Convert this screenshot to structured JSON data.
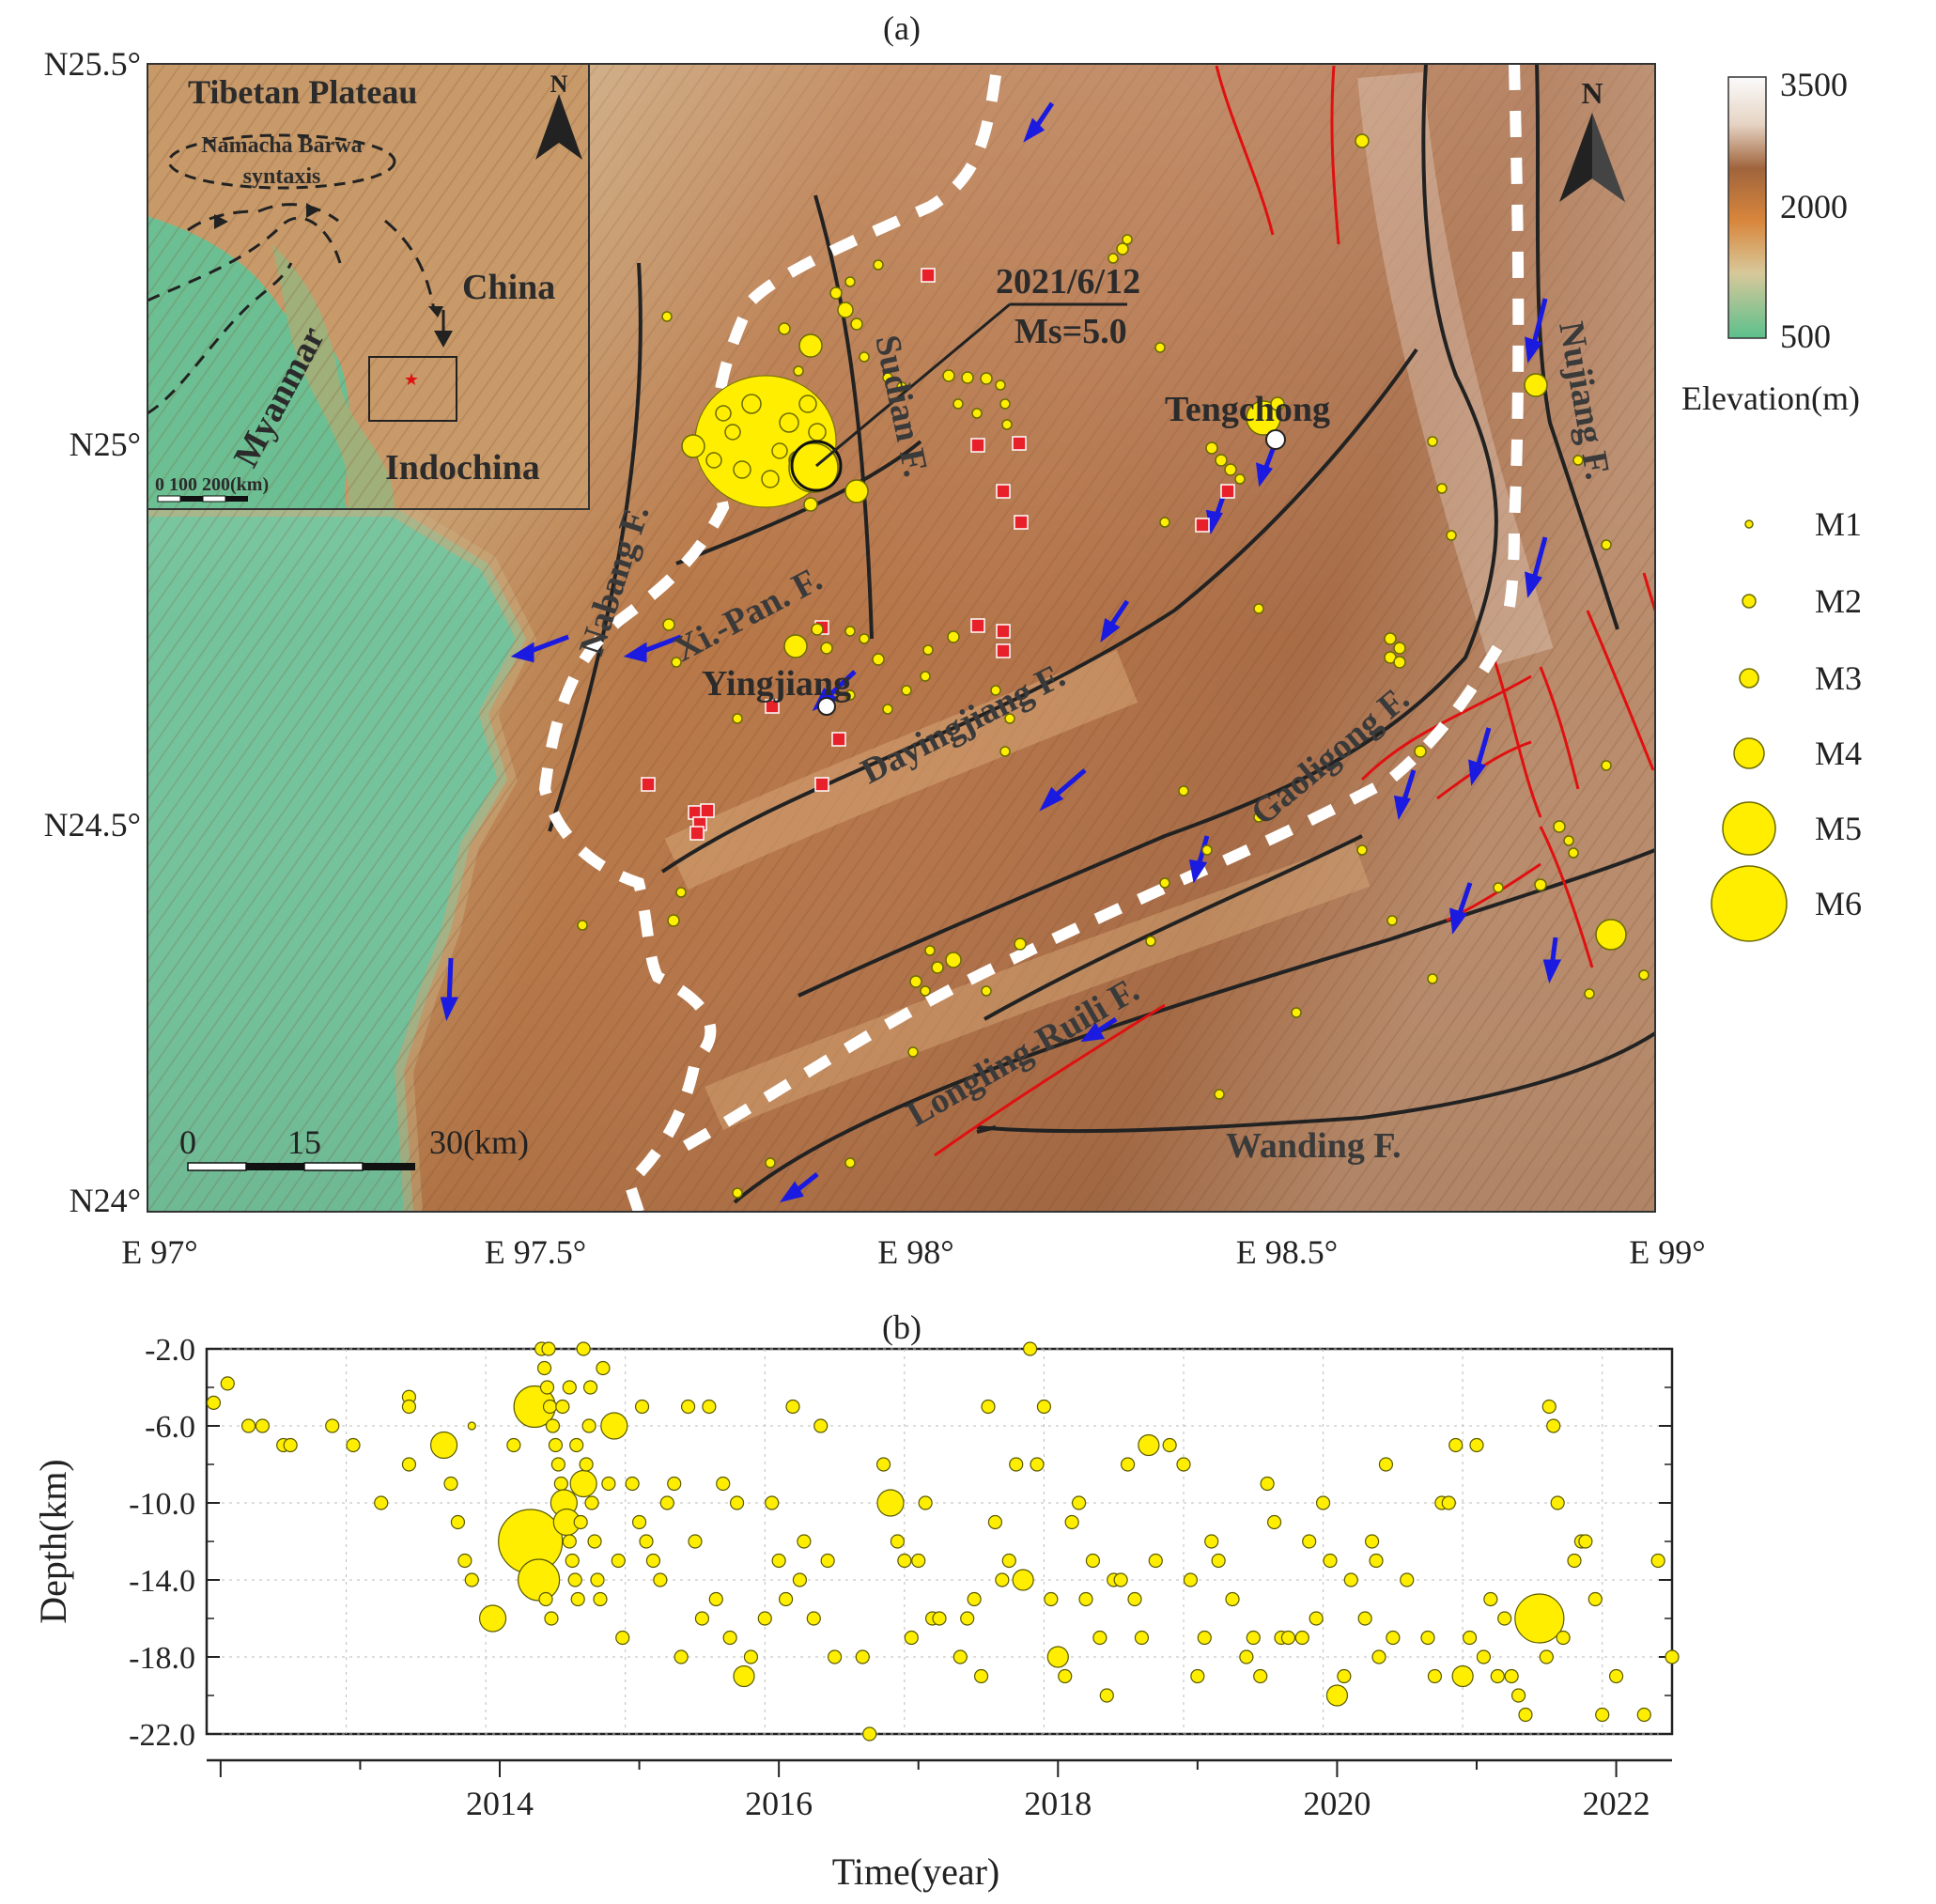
{
  "panel_a": {
    "label": "(a)",
    "lat_labels": [
      "N25.5°",
      "N25°",
      "N24.5°",
      "N24°"
    ],
    "lon_labels": [
      "E 97°",
      "E 97.5°",
      "E 98°",
      "E 98.5°",
      "E 99°"
    ],
    "event_line1": "2021/6/12",
    "event_line2": "Ms=5.0",
    "north_label": "N",
    "scale_labels": [
      "0",
      "15",
      "30(km)"
    ],
    "faults": [
      {
        "name": "Nabang F.",
        "color": "#222222"
      },
      {
        "name": "Xi.-Pan. F.",
        "color": "#222222"
      },
      {
        "name": "Sudian F.",
        "color": "#222222"
      },
      {
        "name": "Dayingjiang F.",
        "color": "#222222"
      },
      {
        "name": "Gaoligong F.",
        "color": "#222222"
      },
      {
        "name": "Longling-Ruili F.",
        "color": "#222222"
      },
      {
        "name": "Wanding F.",
        "color": "#222222"
      },
      {
        "name": "Nujiang F.",
        "color": "#222222"
      }
    ],
    "cities": [
      "Yingjiang",
      "Tengchong"
    ],
    "inset": {
      "title": "Tibetan Plateau",
      "syntaxis_line1": "Namacha Barwa",
      "syntaxis_line2": "syntaxis",
      "regions": [
        "China",
        "Myanmar",
        "Indochina"
      ],
      "scale_label": "0  100  200(km)",
      "north_label": "N"
    },
    "colors": {
      "epicenter": "#ffee00",
      "station": "#e8202a",
      "motion_arrow": "#1a1ae0",
      "boundary": "#ffffff",
      "red_fault": "#e01010"
    }
  },
  "legend": {
    "colorbar_ticks": [
      "3500",
      "2000",
      "500"
    ],
    "colorbar_title": "Elevation(m)",
    "magnitudes": [
      "M1",
      "M2",
      "M3",
      "M4",
      "M5",
      "M6"
    ]
  },
  "chart_data": {
    "type": "scatter",
    "title": "(b)",
    "xlabel": "Time(year)",
    "ylabel": "Depth(km)",
    "xlim": [
      2012.0,
      2022.5
    ],
    "ylim": [
      -22.0,
      -2.0
    ],
    "yticks": [
      "-2.0",
      "-6.0",
      "-10.0",
      "-14.0",
      "-18.0",
      "-22.0"
    ],
    "xticks": [
      "2014",
      "2016",
      "2018",
      "2020",
      "2022"
    ],
    "grid": true,
    "point_color": "#ffee00",
    "points": [
      [
        2012.05,
        -4.8,
        2
      ],
      [
        2012.15,
        -3.8,
        2
      ],
      [
        2012.3,
        -6,
        2
      ],
      [
        2012.4,
        -6,
        2
      ],
      [
        2012.55,
        -7,
        2
      ],
      [
        2012.6,
        -7,
        2
      ],
      [
        2012.9,
        -6,
        2
      ],
      [
        2013.05,
        -7,
        2
      ],
      [
        2013.25,
        -10,
        2
      ],
      [
        2013.45,
        -4.5,
        2
      ],
      [
        2013.45,
        -5,
        2
      ],
      [
        2013.45,
        -8,
        2
      ],
      [
        2013.7,
        -7,
        3
      ],
      [
        2013.75,
        -9,
        2
      ],
      [
        2013.8,
        -11,
        2
      ],
      [
        2013.85,
        -13,
        2
      ],
      [
        2013.9,
        -14,
        2
      ],
      [
        2013.9,
        -6,
        1
      ],
      [
        2014.05,
        -16,
        3
      ],
      [
        2014.2,
        -7,
        2
      ],
      [
        2014.25,
        -13,
        2
      ],
      [
        2014.32,
        -12,
        6
      ],
      [
        2014.35,
        -5,
        4
      ],
      [
        2014.38,
        -14,
        4
      ],
      [
        2014.4,
        -2,
        2
      ],
      [
        2014.42,
        -3,
        2
      ],
      [
        2014.44,
        -4,
        2
      ],
      [
        2014.46,
        -5,
        2
      ],
      [
        2014.48,
        -6,
        2
      ],
      [
        2014.5,
        -7,
        2
      ],
      [
        2014.52,
        -8,
        2
      ],
      [
        2014.54,
        -9,
        2
      ],
      [
        2014.56,
        -10,
        3
      ],
      [
        2014.58,
        -11,
        3
      ],
      [
        2014.6,
        -12,
        2
      ],
      [
        2014.62,
        -13,
        2
      ],
      [
        2014.64,
        -14,
        2
      ],
      [
        2014.66,
        -15,
        2
      ],
      [
        2014.68,
        -11,
        2
      ],
      [
        2014.7,
        -9,
        3
      ],
      [
        2014.72,
        -8,
        2
      ],
      [
        2014.74,
        -6,
        2
      ],
      [
        2014.76,
        -10,
        2
      ],
      [
        2014.78,
        -12,
        2
      ],
      [
        2014.8,
        -14,
        2
      ],
      [
        2014.82,
        -15,
        2
      ],
      [
        2014.84,
        -3,
        2
      ],
      [
        2014.88,
        -9,
        2
      ],
      [
        2014.92,
        -6,
        3
      ],
      [
        2014.95,
        -13,
        2
      ],
      [
        2014.98,
        -17,
        2
      ],
      [
        2014.45,
        -2,
        2
      ],
      [
        2014.47,
        -16,
        2
      ],
      [
        2014.43,
        -15,
        2
      ],
      [
        2014.7,
        -2,
        2
      ],
      [
        2014.6,
        -4,
        2
      ],
      [
        2014.55,
        -5,
        2
      ],
      [
        2014.65,
        -7,
        2
      ],
      [
        2014.75,
        -4,
        2
      ],
      [
        2015.05,
        -9,
        2
      ],
      [
        2015.1,
        -11,
        2
      ],
      [
        2015.12,
        -5,
        2
      ],
      [
        2015.15,
        -12,
        2
      ],
      [
        2015.2,
        -13,
        2
      ],
      [
        2015.25,
        -14,
        2
      ],
      [
        2015.3,
        -10,
        2
      ],
      [
        2015.35,
        -9,
        2
      ],
      [
        2015.4,
        -18,
        2
      ],
      [
        2015.45,
        -5,
        2
      ],
      [
        2015.5,
        -12,
        2
      ],
      [
        2015.55,
        -16,
        2
      ],
      [
        2015.6,
        -5,
        2
      ],
      [
        2015.65,
        -15,
        2
      ],
      [
        2015.7,
        -9,
        2
      ],
      [
        2015.75,
        -17,
        2
      ],
      [
        2015.8,
        -10,
        2
      ],
      [
        2015.85,
        -19,
        2.5
      ],
      [
        2015.9,
        -18,
        2
      ],
      [
        2016.0,
        -16,
        2
      ],
      [
        2016.05,
        -10,
        2
      ],
      [
        2016.1,
        -13,
        2
      ],
      [
        2016.15,
        -15,
        2
      ],
      [
        2016.2,
        -5,
        2
      ],
      [
        2016.25,
        -14,
        2
      ],
      [
        2016.28,
        -12,
        2
      ],
      [
        2016.35,
        -16,
        2
      ],
      [
        2016.4,
        -6,
        2
      ],
      [
        2016.45,
        -13,
        2
      ],
      [
        2016.5,
        -18,
        2
      ],
      [
        2016.7,
        -18,
        2
      ],
      [
        2016.75,
        -22,
        2
      ],
      [
        2016.85,
        -8,
        2
      ],
      [
        2016.9,
        -10,
        3
      ],
      [
        2016.95,
        -12,
        2
      ],
      [
        2017.0,
        -13,
        2
      ],
      [
        2017.05,
        -17,
        2
      ],
      [
        2017.1,
        -13,
        2
      ],
      [
        2017.15,
        -10,
        2
      ],
      [
        2017.2,
        -16,
        2
      ],
      [
        2017.25,
        -16,
        2
      ],
      [
        2017.4,
        -18,
        2
      ],
      [
        2017.45,
        -16,
        2
      ],
      [
        2017.5,
        -15,
        2
      ],
      [
        2017.55,
        -19,
        2
      ],
      [
        2017.6,
        -5,
        2
      ],
      [
        2017.65,
        -11,
        2
      ],
      [
        2017.7,
        -14,
        2
      ],
      [
        2017.75,
        -13,
        2
      ],
      [
        2017.8,
        -8,
        2
      ],
      [
        2017.85,
        -14,
        2.5
      ],
      [
        2017.9,
        -2,
        2
      ],
      [
        2017.95,
        -8,
        2
      ],
      [
        2018.0,
        -5,
        2
      ],
      [
        2018.05,
        -15,
        2
      ],
      [
        2018.1,
        -18,
        2.5
      ],
      [
        2018.15,
        -19,
        2
      ],
      [
        2018.2,
        -11,
        2
      ],
      [
        2018.25,
        -10,
        2
      ],
      [
        2018.3,
        -15,
        2
      ],
      [
        2018.35,
        -13,
        2
      ],
      [
        2018.4,
        -17,
        2
      ],
      [
        2018.45,
        -20,
        2
      ],
      [
        2018.5,
        -14,
        2
      ],
      [
        2018.55,
        -14,
        2
      ],
      [
        2018.6,
        -8,
        2
      ],
      [
        2018.65,
        -15,
        2
      ],
      [
        2018.7,
        -17,
        2
      ],
      [
        2018.75,
        -7,
        2.5
      ],
      [
        2018.8,
        -13,
        2
      ],
      [
        2018.9,
        -7,
        2
      ],
      [
        2019.0,
        -8,
        2
      ],
      [
        2019.05,
        -14,
        2
      ],
      [
        2019.1,
        -19,
        2
      ],
      [
        2019.15,
        -17,
        2
      ],
      [
        2019.2,
        -12,
        2
      ],
      [
        2019.25,
        -13,
        2
      ],
      [
        2019.35,
        -15,
        2
      ],
      [
        2019.45,
        -18,
        2
      ],
      [
        2019.5,
        -17,
        2
      ],
      [
        2019.55,
        -19,
        2
      ],
      [
        2019.6,
        -9,
        2
      ],
      [
        2019.65,
        -11,
        2
      ],
      [
        2019.7,
        -17,
        2
      ],
      [
        2019.75,
        -17,
        2
      ],
      [
        2019.85,
        -17,
        2
      ],
      [
        2019.9,
        -12,
        2
      ],
      [
        2019.95,
        -16,
        2
      ],
      [
        2020.0,
        -10,
        2
      ],
      [
        2020.05,
        -13,
        2
      ],
      [
        2020.1,
        -20,
        2.5
      ],
      [
        2020.15,
        -19,
        2
      ],
      [
        2020.2,
        -14,
        2
      ],
      [
        2020.3,
        -16,
        2
      ],
      [
        2020.35,
        -12,
        2
      ],
      [
        2020.38,
        -13,
        2
      ],
      [
        2020.4,
        -18,
        2
      ],
      [
        2020.45,
        -8,
        2
      ],
      [
        2020.5,
        -17,
        2
      ],
      [
        2020.6,
        -14,
        2
      ],
      [
        2020.75,
        -17,
        2
      ],
      [
        2020.8,
        -19,
        2
      ],
      [
        2020.85,
        -10,
        2
      ],
      [
        2020.9,
        -10,
        2
      ],
      [
        2020.95,
        -7,
        2
      ],
      [
        2021.0,
        -19,
        2.5
      ],
      [
        2021.05,
        -17,
        2
      ],
      [
        2021.1,
        -7,
        2
      ],
      [
        2021.15,
        -18,
        2
      ],
      [
        2021.2,
        -15,
        2
      ],
      [
        2021.25,
        -19,
        2
      ],
      [
        2021.3,
        -16,
        2
      ],
      [
        2021.35,
        -19,
        2
      ],
      [
        2021.4,
        -20,
        2
      ],
      [
        2021.45,
        -21,
        2
      ],
      [
        2021.55,
        -16,
        5
      ],
      [
        2021.6,
        -18,
        2
      ],
      [
        2021.62,
        -5,
        2
      ],
      [
        2021.65,
        -6,
        2
      ],
      [
        2021.68,
        -10,
        2
      ],
      [
        2021.72,
        -17,
        2
      ],
      [
        2021.8,
        -13,
        2
      ],
      [
        2021.85,
        -12,
        2
      ],
      [
        2021.88,
        -12,
        2
      ],
      [
        2021.95,
        -15,
        2
      ],
      [
        2022.0,
        -21,
        2
      ],
      [
        2022.1,
        -19,
        2
      ],
      [
        2022.3,
        -21,
        2
      ],
      [
        2022.4,
        -13,
        2
      ],
      [
        2022.5,
        -18,
        2
      ]
    ]
  }
}
